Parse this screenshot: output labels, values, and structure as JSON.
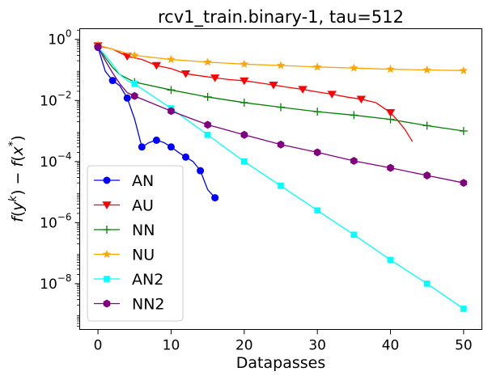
{
  "chart_data": {
    "type": "line",
    "title": "rcv1_train.binary-1, tau=512",
    "xlabel": "Datapasses",
    "ylabel": "f(y^k) − f(x*)",
    "ylabel_parts": {
      "f1": "f",
      "open1": "(",
      "y": "y",
      "k": "k",
      "close1": ")",
      "minus": " − ",
      "f2": "f",
      "open2": "(",
      "x": "x",
      "star": "*",
      "close2": ")"
    },
    "xlim": [
      -2.5,
      52.5
    ],
    "ylim_log10": [
      -9.5,
      0.35
    ],
    "x_ticks": [
      0,
      10,
      20,
      30,
      40,
      50
    ],
    "x_tick_labels": [
      "0",
      "10",
      "20",
      "30",
      "40",
      "50"
    ],
    "y_ticks_log10": [
      0,
      -2,
      -4,
      -6,
      -8
    ],
    "y_tick_labels": [
      {
        "base": "10",
        "exp": "0"
      },
      {
        "base": "10",
        "exp": "−2"
      },
      {
        "base": "10",
        "exp": "−4"
      },
      {
        "base": "10",
        "exp": "−6"
      },
      {
        "base": "10",
        "exp": "−8"
      }
    ],
    "legend_position": "lower-left",
    "series": [
      {
        "name": "AN",
        "color": "#0000ff",
        "marker": "circle",
        "line": [
          [
            0,
            0.55
          ],
          [
            1,
            0.09
          ],
          [
            2,
            0.045
          ],
          [
            3,
            0.03
          ],
          [
            4,
            0.012
          ],
          [
            5,
            0.0025
          ],
          [
            6,
            0.0003
          ],
          [
            7,
            0.00042
          ],
          [
            8,
            0.0005
          ],
          [
            9,
            0.00042
          ],
          [
            10,
            0.0003
          ],
          [
            11,
            0.0002
          ],
          [
            12,
            0.00014
          ],
          [
            13,
            0.0001
          ],
          [
            14,
            5e-05
          ],
          [
            15,
            1.2e-05
          ],
          [
            16,
            6.5e-06
          ]
        ],
        "markers": [
          [
            0,
            0.55
          ],
          [
            2,
            0.045
          ],
          [
            4,
            0.012
          ],
          [
            6,
            0.0003
          ],
          [
            8,
            0.0005
          ],
          [
            10,
            0.0003
          ],
          [
            12,
            0.00014
          ],
          [
            14,
            5e-05
          ],
          [
            16,
            6.5e-06
          ]
        ]
      },
      {
        "name": "AU",
        "color": "#ff0000",
        "marker": "triangle-down",
        "line": [
          [
            0,
            0.62
          ],
          [
            2,
            0.48
          ],
          [
            4,
            0.28
          ],
          [
            6,
            0.22
          ],
          [
            8,
            0.14
          ],
          [
            10,
            0.11
          ],
          [
            12,
            0.075
          ],
          [
            14,
            0.064
          ],
          [
            16,
            0.055
          ],
          [
            18,
            0.048
          ],
          [
            20,
            0.044
          ],
          [
            22,
            0.038
          ],
          [
            24,
            0.032
          ],
          [
            26,
            0.027
          ],
          [
            28,
            0.023
          ],
          [
            30,
            0.019
          ],
          [
            32,
            0.016
          ],
          [
            34,
            0.013
          ],
          [
            36,
            0.011
          ],
          [
            38,
            0.0085
          ],
          [
            40,
            0.004
          ],
          [
            41,
            0.0022
          ],
          [
            42,
            0.0011
          ],
          [
            43,
            0.00045
          ]
        ],
        "markers": [
          [
            0,
            0.62
          ],
          [
            4,
            0.28
          ],
          [
            8,
            0.14
          ],
          [
            12,
            0.075
          ],
          [
            16,
            0.055
          ],
          [
            20,
            0.044
          ],
          [
            24,
            0.032
          ],
          [
            28,
            0.023
          ],
          [
            32,
            0.016
          ],
          [
            36,
            0.011
          ],
          [
            40,
            0.004
          ]
        ]
      },
      {
        "name": "NN",
        "color": "#008000",
        "marker": "plus",
        "line": [
          [
            0,
            0.6
          ],
          [
            1,
            0.25
          ],
          [
            2,
            0.12
          ],
          [
            3,
            0.07
          ],
          [
            5,
            0.04
          ],
          [
            10,
            0.022
          ],
          [
            15,
            0.013
          ],
          [
            20,
            0.0085
          ],
          [
            25,
            0.006
          ],
          [
            30,
            0.0043
          ],
          [
            35,
            0.0033
          ],
          [
            40,
            0.0024
          ],
          [
            45,
            0.0015
          ],
          [
            50,
            0.001
          ]
        ],
        "markers": [
          [
            0,
            0.6
          ],
          [
            5,
            0.04
          ],
          [
            10,
            0.022
          ],
          [
            15,
            0.013
          ],
          [
            20,
            0.0085
          ],
          [
            25,
            0.006
          ],
          [
            30,
            0.0043
          ],
          [
            35,
            0.0033
          ],
          [
            40,
            0.0024
          ],
          [
            45,
            0.0015
          ],
          [
            50,
            0.001
          ]
        ]
      },
      {
        "name": "NU",
        "color": "#ffa500",
        "marker": "star",
        "line": [
          [
            0,
            0.65
          ],
          [
            5,
            0.3
          ],
          [
            10,
            0.22
          ],
          [
            15,
            0.18
          ],
          [
            20,
            0.155
          ],
          [
            25,
            0.14
          ],
          [
            30,
            0.125
          ],
          [
            35,
            0.115
          ],
          [
            40,
            0.105
          ],
          [
            45,
            0.1
          ],
          [
            50,
            0.095
          ]
        ],
        "markers": [
          [
            0,
            0.65
          ],
          [
            5,
            0.3
          ],
          [
            10,
            0.22
          ],
          [
            15,
            0.18
          ],
          [
            20,
            0.155
          ],
          [
            25,
            0.14
          ],
          [
            30,
            0.125
          ],
          [
            35,
            0.115
          ],
          [
            40,
            0.105
          ],
          [
            45,
            0.1
          ],
          [
            50,
            0.095
          ]
        ]
      },
      {
        "name": "AN2",
        "color": "#00ffff",
        "marker": "square",
        "line": [
          [
            0,
            0.55
          ],
          [
            1,
            0.3
          ],
          [
            2,
            0.15
          ],
          [
            3,
            0.07
          ],
          [
            4,
            0.045
          ],
          [
            5,
            0.035
          ],
          [
            10,
            0.0055
          ],
          [
            15,
            0.00075
          ],
          [
            20,
            0.0001
          ],
          [
            25,
            1.6e-05
          ],
          [
            30,
            2.5e-06
          ],
          [
            35,
            4e-07
          ],
          [
            40,
            6e-08
          ],
          [
            45,
            1e-08
          ],
          [
            50,
            1.5e-09
          ]
        ],
        "markers": [
          [
            5,
            0.035
          ],
          [
            10,
            0.0055
          ],
          [
            15,
            0.00075
          ],
          [
            20,
            0.0001
          ],
          [
            25,
            1.6e-05
          ],
          [
            30,
            2.5e-06
          ],
          [
            35,
            4e-07
          ],
          [
            40,
            6e-08
          ],
          [
            45,
            1e-08
          ],
          [
            50,
            1.5e-09
          ]
        ]
      },
      {
        "name": "NN2",
        "color": "#800080",
        "marker": "hexagon",
        "line": [
          [
            0,
            0.58
          ],
          [
            1,
            0.2
          ],
          [
            2,
            0.08
          ],
          [
            3,
            0.035
          ],
          [
            4,
            0.018
          ],
          [
            5,
            0.014
          ],
          [
            10,
            0.0045
          ],
          [
            15,
            0.0016
          ],
          [
            20,
            0.00075
          ],
          [
            25,
            0.00036
          ],
          [
            30,
            0.0002
          ],
          [
            35,
            0.000105
          ],
          [
            40,
            6.2e-05
          ],
          [
            45,
            3.5e-05
          ],
          [
            50,
            2e-05
          ]
        ],
        "markers": [
          [
            0,
            0.58
          ],
          [
            5,
            0.014
          ],
          [
            10,
            0.0045
          ],
          [
            15,
            0.0016
          ],
          [
            20,
            0.00075
          ],
          [
            25,
            0.00036
          ],
          [
            30,
            0.0002
          ],
          [
            35,
            0.000105
          ],
          [
            40,
            6.2e-05
          ],
          [
            45,
            3.5e-05
          ],
          [
            50,
            2e-05
          ]
        ]
      }
    ]
  }
}
